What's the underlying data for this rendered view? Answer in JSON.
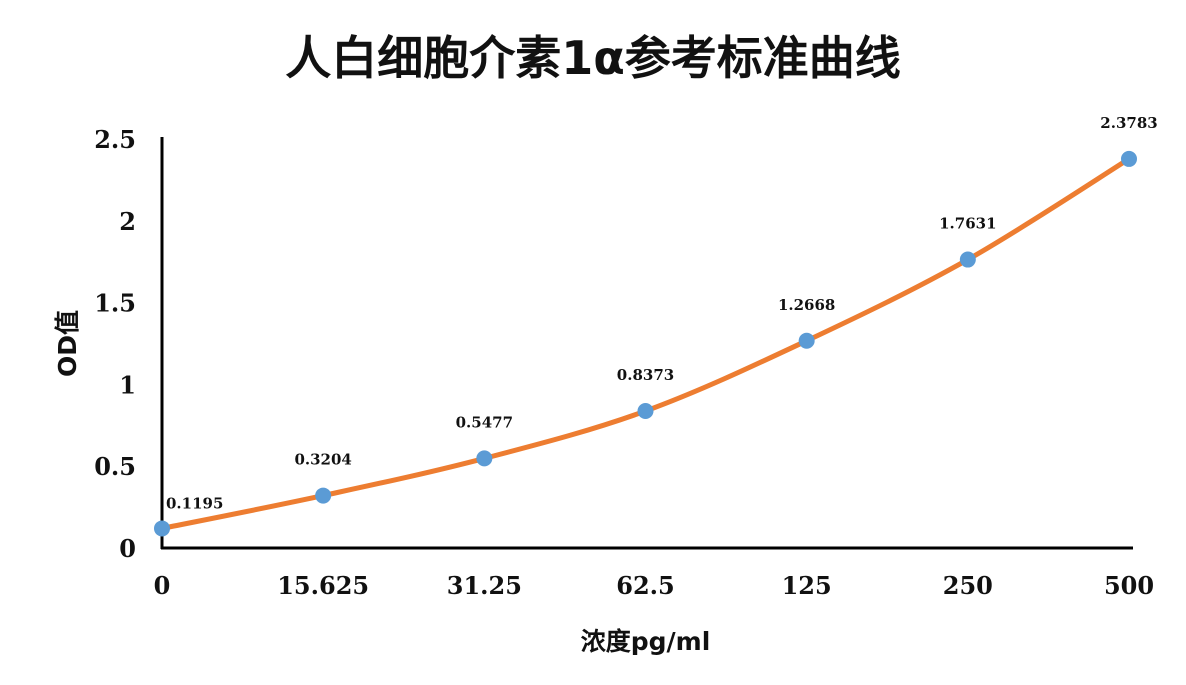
{
  "chart_data": {
    "type": "line",
    "title": "人白细胞介素1α参考标准曲线",
    "xlabel": "浓度pg/ml",
    "ylabel": "OD值",
    "categories": [
      "0",
      "15.625",
      "31.25",
      "62.5",
      "125",
      "250",
      "500"
    ],
    "series": [
      {
        "values": [
          0.1195,
          0.3204,
          0.5477,
          0.8373,
          1.2668,
          1.7631,
          2.3783
        ],
        "labels": [
          "0.1195",
          "0.3204",
          "0.5477",
          "0.8373",
          "1.2668",
          "1.7631",
          "2.3783"
        ]
      }
    ],
    "ylim": [
      0,
      2.5
    ],
    "yticks": [
      "0",
      "0.5",
      "1",
      "1.5",
      "2",
      "2.5"
    ],
    "grid": false,
    "legend": "none",
    "line_color": "#ED7D31",
    "marker_color": "#5B9BD5"
  }
}
